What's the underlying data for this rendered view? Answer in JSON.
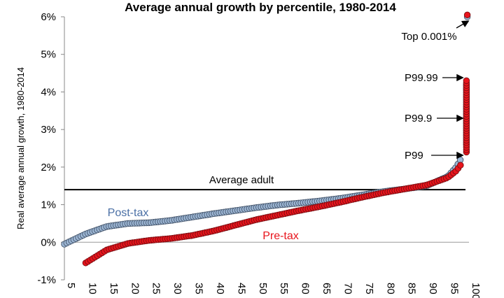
{
  "chart_data": {
    "type": "scatter",
    "title": "Average annual growth by percentile, 1980-2014",
    "ylabel": "Real average annual growth, 1980-2014",
    "xlabel": "",
    "xlim": [
      5,
      100
    ],
    "ylim": [
      -1,
      6
    ],
    "y_tick_labels": [
      "-1%",
      "0%",
      "1%",
      "2%",
      "3%",
      "4%",
      "5%",
      "6%"
    ],
    "x_tick_labels": [
      "5",
      "10",
      "15",
      "20",
      "25",
      "30",
      "35",
      "40",
      "45",
      "50",
      "55",
      "60",
      "65",
      "70",
      "75",
      "80",
      "85",
      "90",
      "95",
      "100"
    ],
    "grid": false,
    "zero_line": true,
    "reference_line": {
      "label": "Average adult",
      "value": 1.4
    },
    "series": [
      {
        "name": "Post-tax",
        "color": "#9db7d5",
        "x": [
          5,
          10,
          15,
          20,
          25,
          30,
          35,
          40,
          45,
          50,
          55,
          60,
          65,
          70,
          75,
          80,
          85,
          90,
          95,
          97,
          98,
          99,
          99.9,
          99.99,
          99.999
        ],
        "y": [
          -0.05,
          0.22,
          0.42,
          0.5,
          0.52,
          0.58,
          0.67,
          0.76,
          0.84,
          0.92,
          0.99,
          1.04,
          1.1,
          1.17,
          1.26,
          1.35,
          1.42,
          1.5,
          1.75,
          2.0,
          2.2,
          2.6,
          3.3,
          4.2,
          6.0
        ]
      },
      {
        "name": "Pre-tax",
        "color": "#e8141c",
        "x": [
          10,
          15,
          20,
          25,
          30,
          35,
          40,
          45,
          50,
          55,
          60,
          65,
          70,
          75,
          80,
          85,
          90,
          95,
          97,
          98,
          99,
          99.9,
          99.99,
          99.999
        ],
        "y": [
          -0.55,
          -0.2,
          -0.03,
          0.05,
          0.1,
          0.18,
          0.3,
          0.45,
          0.6,
          0.72,
          0.84,
          0.95,
          1.07,
          1.2,
          1.32,
          1.42,
          1.52,
          1.72,
          1.9,
          2.05,
          2.4,
          3.2,
          4.3,
          6.05
        ]
      }
    ],
    "annotations": [
      {
        "text": "Top 0.001%",
        "x": 99.999,
        "y": 6.0
      },
      {
        "text": "P99.99",
        "x": 99.99,
        "y": 4.4
      },
      {
        "text": "P99.9",
        "x": 99.9,
        "y": 3.3
      },
      {
        "text": "P99",
        "x": 99,
        "y": 2.35
      }
    ]
  }
}
